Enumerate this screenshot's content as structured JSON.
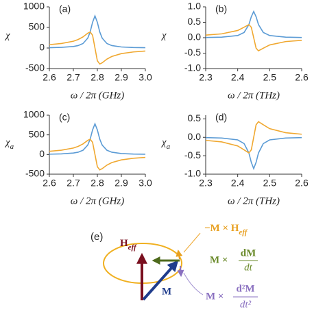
{
  "chart_data": [
    {
      "type": "line",
      "panel": "(a)",
      "y_label": "χ",
      "x_label": "ω / 2π  (GHz)",
      "x": [
        2.6,
        2.65,
        2.7,
        2.72,
        2.74,
        2.76,
        2.77,
        2.78,
        2.79,
        2.8,
        2.81,
        2.82,
        2.84,
        2.86,
        2.9,
        2.95,
        3.0
      ],
      "series": [
        {
          "color": "#5b9bd5",
          "values": [
            8,
            16,
            37,
            59,
            108,
            240,
            390,
            624,
            780,
            624,
            390,
            240,
            108,
            59,
            25,
            12,
            7
          ]
        },
        {
          "color": "#f0a830",
          "values": [
            81,
            109,
            165,
            206,
            269,
            360,
            390,
            312,
            0,
            -312,
            -390,
            -360,
            -269,
            -206,
            -137,
            -96,
            -74
          ]
        }
      ],
      "xlim": [
        2.6,
        3.0
      ],
      "xticks": [
        2.6,
        2.7,
        2.8,
        2.9,
        {
          "value": 3.0,
          "label": "3.0"
        }
      ],
      "ylim": [
        -500,
        1000
      ],
      "yticks": [
        -500,
        0,
        500,
        1000
      ]
    },
    {
      "type": "line",
      "panel": "(b)",
      "y_label": "χ",
      "x_label": "ω / 2π  (THz)",
      "x": [
        2.3,
        2.35,
        2.4,
        2.42,
        2.435,
        2.4425,
        2.45,
        2.4575,
        2.465,
        2.48,
        2.5,
        2.55,
        2.6
      ],
      "series": [
        {
          "color": "#5b9bd5",
          "values": [
            0.008,
            0.019,
            0.07,
            0.17,
            0.425,
            0.68,
            0.85,
            0.68,
            0.425,
            0.17,
            0.07,
            0.019,
            0.008
          ]
        },
        {
          "color": "#f0a830",
          "values": [
            0.084,
            0.125,
            0.234,
            0.34,
            0.425,
            0.34,
            0,
            -0.34,
            -0.425,
            -0.34,
            -0.234,
            -0.125,
            -0.084
          ]
        }
      ],
      "xlim": [
        2.3,
        2.6
      ],
      "xticks": [
        2.3,
        2.4,
        2.5,
        2.6
      ],
      "ylim": [
        -1,
        1
      ],
      "yticks": [
        {
          "value": -1,
          "label": "-1.0"
        },
        -0.5,
        {
          "value": 0,
          "label": "0.0"
        },
        0.5,
        {
          "value": 1,
          "label": "1.0"
        }
      ]
    },
    {
      "type": "line",
      "panel": "(c)",
      "y_label": "χ",
      "y_label_sub": "a",
      "x_label": "ω / 2π  (GHz)",
      "x": [
        2.6,
        2.65,
        2.7,
        2.72,
        2.74,
        2.76,
        2.77,
        2.78,
        2.79,
        2.8,
        2.81,
        2.82,
        2.84,
        2.86,
        2.9,
        2.95,
        3.0
      ],
      "series": [
        {
          "color": "#5b9bd5",
          "values": [
            8,
            16,
            37,
            59,
            108,
            240,
            390,
            624,
            780,
            624,
            390,
            240,
            108,
            59,
            25,
            12,
            7
          ]
        },
        {
          "color": "#f0a830",
          "values": [
            81,
            109,
            165,
            206,
            269,
            360,
            390,
            312,
            0,
            -312,
            -390,
            -360,
            -269,
            -206,
            -137,
            -96,
            -74
          ]
        }
      ],
      "xlim": [
        2.6,
        3.0
      ],
      "xticks": [
        2.6,
        2.7,
        2.8,
        2.9,
        {
          "value": 3.0,
          "label": "3.0"
        }
      ],
      "ylim": [
        -500,
        1000
      ],
      "yticks": [
        -500,
        0,
        500,
        1000
      ]
    },
    {
      "type": "line",
      "panel": "(d)",
      "y_label": "χ",
      "y_label_sub": "a",
      "x_label": "ω / 2π  (THz)",
      "x": [
        2.3,
        2.35,
        2.4,
        2.42,
        2.435,
        2.4425,
        2.45,
        2.4575,
        2.465,
        2.48,
        2.5,
        2.55,
        2.6
      ],
      "series": [
        {
          "color": "#5b9bd5",
          "values": [
            -0.008,
            -0.019,
            -0.07,
            -0.17,
            -0.425,
            -0.68,
            -0.85,
            -0.68,
            -0.425,
            -0.17,
            -0.07,
            -0.019,
            -0.008
          ]
        },
        {
          "color": "#f0a830",
          "values": [
            -0.084,
            -0.125,
            -0.234,
            -0.34,
            -0.425,
            -0.34,
            0,
            0.34,
            0.425,
            0.34,
            0.234,
            0.125,
            0.084
          ]
        }
      ],
      "xlim": [
        2.3,
        2.6
      ],
      "xticks": [
        2.3,
        2.4,
        2.5,
        2.6
      ],
      "ylim": [
        -1,
        0.6
      ],
      "yticks": [
        {
          "value": -1,
          "label": "-1.0"
        },
        -0.5,
        {
          "value": 0,
          "label": "0.0"
        },
        0.5
      ]
    }
  ],
  "diagram": {
    "panel": "(e)",
    "field": "H",
    "field_sub": "eff",
    "moment": "M",
    "precession": "−M × H",
    "precession_sub": "eff",
    "damping": "M ×",
    "damping_num": "dM",
    "damping_den": "dt",
    "inertia": "M ×",
    "inertia_num": "d²M",
    "inertia_den": "dt²"
  }
}
